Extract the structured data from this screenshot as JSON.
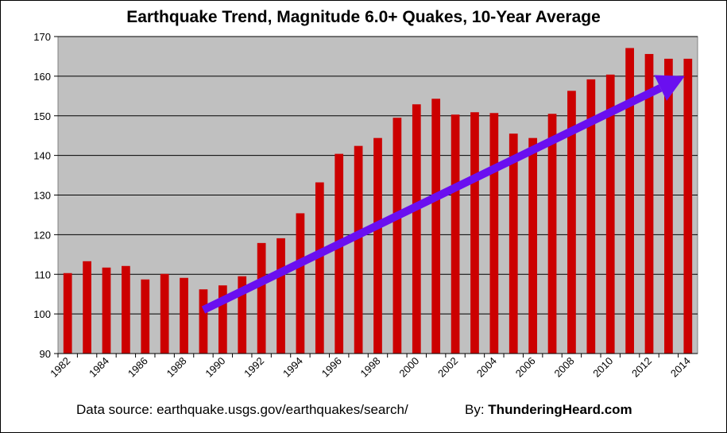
{
  "chart_data": {
    "type": "bar",
    "title": "Earthquake Trend, Magnitude 6.0+ Quakes, 10-Year Average",
    "xlabel": "",
    "ylabel": "",
    "ylim": [
      90,
      170
    ],
    "yticks": [
      "90",
      "100",
      "110",
      "120",
      "130",
      "140",
      "150",
      "160",
      "170"
    ],
    "grid": true,
    "categories": [
      "1982",
      "1983",
      "1984",
      "1985",
      "1986",
      "1987",
      "1988",
      "1989",
      "1990",
      "1991",
      "1992",
      "1993",
      "1994",
      "1995",
      "1996",
      "1997",
      "1998",
      "1999",
      "2000",
      "2001",
      "2002",
      "2003",
      "2004",
      "2005",
      "2006",
      "2007",
      "2008",
      "2009",
      "2010",
      "2011",
      "2012",
      "2013",
      "2014"
    ],
    "xtick_labels": [
      "1982",
      "1984",
      "1986",
      "1988",
      "1990",
      "1992",
      "1994",
      "1996",
      "1998",
      "2000",
      "2002",
      "2004",
      "2006",
      "2008",
      "2010",
      "2012",
      "2014"
    ],
    "series": [
      {
        "name": "10-Year Average",
        "color": "#cc0000",
        "values": [
          110.3,
          113.3,
          111.7,
          112.1,
          108.7,
          110.1,
          109.1,
          106.2,
          107.2,
          109.5,
          117.9,
          119.1,
          125.4,
          133.2,
          140.4,
          142.4,
          144.4,
          149.5,
          152.9,
          154.3,
          150.3,
          150.9,
          150.7,
          145.5,
          144.4,
          150.5,
          156.3,
          159.2,
          160.4,
          167.1,
          165.6,
          164.4,
          164.4
        ]
      }
    ],
    "trend_arrow": {
      "color": "#6a0ff0",
      "start": {
        "year": 1989,
        "value": 101
      },
      "end": {
        "year": 2014,
        "value": 160
      }
    },
    "plot_background": "#c0c0c0",
    "data_source_text": "Data source: earthquake.usgs.gov/earthquakes/search/",
    "by_label": "By:",
    "by_site": "ThunderingHeard.com"
  }
}
